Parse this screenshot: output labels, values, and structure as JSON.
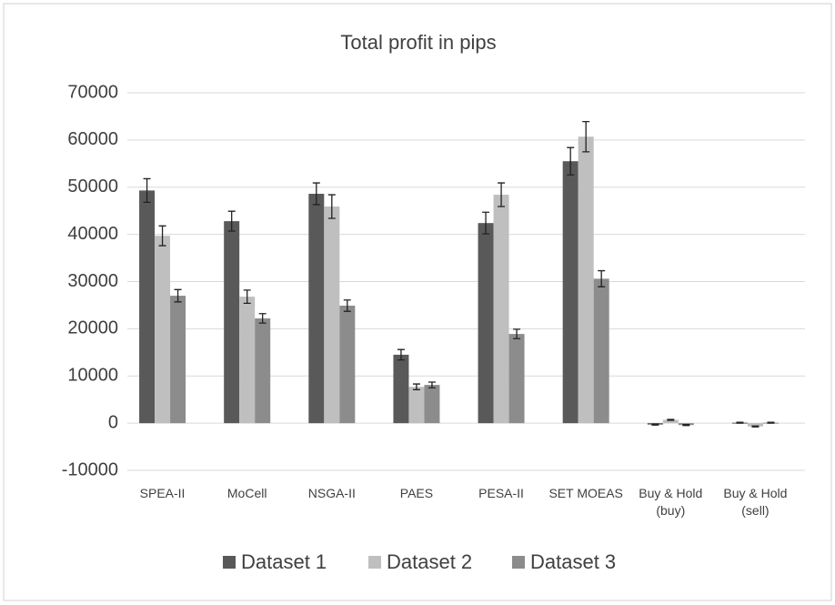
{
  "chart_data": {
    "type": "bar",
    "title": "Total profit in pips",
    "categories": [
      "SPEA-II",
      "MoCell",
      "NSGA-II",
      "PAES",
      "PESA-II",
      "SET MOEAS",
      "Buy & Hold (buy)",
      "Buy & Hold (sell)"
    ],
    "series": [
      {
        "name": "Dataset 1",
        "color": "#595959",
        "values": [
          49300,
          42800,
          48600,
          14500,
          42400,
          55500,
          -300,
          100
        ],
        "errors": [
          2500,
          2100,
          2300,
          1100,
          2300,
          2900,
          100,
          100
        ]
      },
      {
        "name": "Dataset 2",
        "color": "#bfbfbf",
        "values": [
          39700,
          26800,
          45900,
          7700,
          48400,
          60700,
          700,
          -700
        ],
        "errors": [
          2100,
          1400,
          2500,
          600,
          2500,
          3200,
          100,
          100
        ]
      },
      {
        "name": "Dataset 3",
        "color": "#8c8c8c",
        "values": [
          27000,
          22200,
          24900,
          8100,
          18900,
          30600,
          -400,
          100
        ],
        "errors": [
          1300,
          1000,
          1200,
          600,
          1000,
          1700,
          100,
          100
        ]
      }
    ],
    "ylim": [
      -10000,
      70000
    ],
    "yticks": [
      -10000,
      0,
      10000,
      20000,
      30000,
      40000,
      50000,
      60000,
      70000
    ],
    "grid": true,
    "legend": "bottom"
  }
}
